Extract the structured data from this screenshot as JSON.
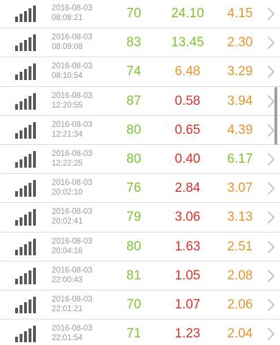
{
  "colors": {
    "green": "#7cc52f",
    "orange": "#e8942a",
    "red": "#d6332a",
    "chevron": "#bdbdbd",
    "signal": "#555555"
  },
  "icons": {
    "signal": "signal-strength-icon",
    "chevron": "chevron-right-icon"
  },
  "rows": [
    {
      "date": "2016-08-03",
      "time": "08:08:21",
      "v1": "70",
      "v1_color": "green",
      "v2": "24.10",
      "v2_color": "green",
      "v3": "4.15",
      "v3_color": "orange"
    },
    {
      "date": "2016-08-03",
      "time": "08:09:08",
      "v1": "83",
      "v1_color": "green",
      "v2": "13.45",
      "v2_color": "green",
      "v3": "2.30",
      "v3_color": "orange"
    },
    {
      "date": "2016-08-03",
      "time": "08:10:54",
      "v1": "74",
      "v1_color": "green",
      "v2": "6.48",
      "v2_color": "orange",
      "v3": "3.29",
      "v3_color": "orange"
    },
    {
      "date": "2016-08-03",
      "time": "12:20:55",
      "v1": "87",
      "v1_color": "green",
      "v2": "0.58",
      "v2_color": "red",
      "v3": "3.94",
      "v3_color": "orange"
    },
    {
      "date": "2016-08-03",
      "time": "12:21:34",
      "v1": "80",
      "v1_color": "green",
      "v2": "0.65",
      "v2_color": "red",
      "v3": "4.39",
      "v3_color": "orange"
    },
    {
      "date": "2016-08-03",
      "time": "12:22:25",
      "v1": "80",
      "v1_color": "green",
      "v2": "0.40",
      "v2_color": "red",
      "v3": "6.17",
      "v3_color": "green"
    },
    {
      "date": "2016-08-03",
      "time": "20:02:10",
      "v1": "76",
      "v1_color": "green",
      "v2": "2.84",
      "v2_color": "red",
      "v3": "3.07",
      "v3_color": "orange"
    },
    {
      "date": "2016-08-03",
      "time": "20:02:41",
      "v1": "79",
      "v1_color": "green",
      "v2": "3.06",
      "v2_color": "red",
      "v3": "3.13",
      "v3_color": "orange"
    },
    {
      "date": "2016-08-03",
      "time": "20:04:16",
      "v1": "80",
      "v1_color": "green",
      "v2": "1.63",
      "v2_color": "red",
      "v3": "2.51",
      "v3_color": "orange"
    },
    {
      "date": "2016-08-03",
      "time": "22:00:43",
      "v1": "81",
      "v1_color": "green",
      "v2": "1.05",
      "v2_color": "red",
      "v3": "2.08",
      "v3_color": "orange"
    },
    {
      "date": "2016-08-03",
      "time": "22:01:21",
      "v1": "70",
      "v1_color": "green",
      "v2": "1.07",
      "v2_color": "red",
      "v3": "2.06",
      "v3_color": "orange"
    },
    {
      "date": "2016-08-03",
      "time": "22:01:54",
      "v1": "71",
      "v1_color": "green",
      "v2": "1.23",
      "v2_color": "red",
      "v3": "2.04",
      "v3_color": "orange"
    }
  ]
}
